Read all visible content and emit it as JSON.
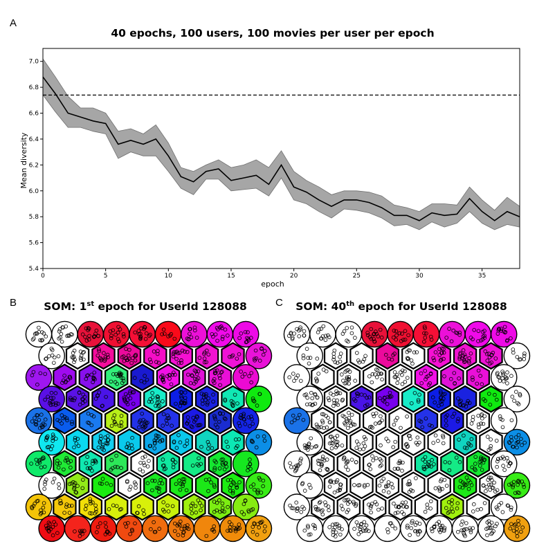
{
  "panels": {
    "a": {
      "letter": "A"
    },
    "b": {
      "letter": "B",
      "title_prefix": "SOM: 1",
      "title_sup": "st",
      "title_suffix": " epoch for UserId 128088"
    },
    "c": {
      "letter": "C",
      "title_prefix": "SOM: 40",
      "title_sup": "th",
      "title_suffix": " epoch for UserId 128088"
    }
  },
  "chart_data": [
    {
      "type": "line",
      "title": "40 epochs, 100 users, 100 movies per user per epoch",
      "xlabel": "epoch",
      "ylabel": "Mean diversity",
      "xlim": [
        0,
        38
      ],
      "ylim": [
        5.4,
        7.1
      ],
      "xticks": [
        0,
        5,
        10,
        15,
        20,
        25,
        30,
        35
      ],
      "yticks": [
        "5.4",
        "5.6",
        "5.8",
        "6.0",
        "6.2",
        "6.4",
        "6.6",
        "6.8",
        "7.0"
      ],
      "reference_line": 6.74,
      "x": [
        0,
        1,
        2,
        3,
        4,
        5,
        6,
        7,
        8,
        9,
        10,
        11,
        12,
        13,
        14,
        15,
        16,
        17,
        18,
        19,
        20,
        21,
        22,
        23,
        24,
        25,
        26,
        27,
        28,
        29,
        30,
        31,
        32,
        33,
        34,
        35,
        36,
        37,
        38
      ],
      "mean": [
        6.88,
        6.75,
        6.6,
        6.57,
        6.54,
        6.52,
        6.36,
        6.39,
        6.36,
        6.4,
        6.27,
        6.11,
        6.07,
        6.15,
        6.17,
        6.08,
        6.1,
        6.12,
        6.05,
        6.2,
        6.03,
        5.99,
        5.93,
        5.88,
        5.93,
        5.93,
        5.91,
        5.87,
        5.81,
        5.81,
        5.77,
        5.83,
        5.81,
        5.82,
        5.94,
        5.84,
        5.77,
        5.84,
        5.8
      ],
      "upper": [
        7.02,
        6.88,
        6.73,
        6.64,
        6.64,
        6.6,
        6.46,
        6.48,
        6.44,
        6.51,
        6.37,
        6.18,
        6.15,
        6.2,
        6.24,
        6.18,
        6.2,
        6.24,
        6.18,
        6.31,
        6.15,
        6.08,
        6.03,
        5.97,
        6.0,
        6.0,
        5.99,
        5.96,
        5.89,
        5.87,
        5.84,
        5.9,
        5.9,
        5.89,
        6.03,
        5.93,
        5.85,
        5.95,
        5.88
      ],
      "lower": [
        6.74,
        6.61,
        6.49,
        6.49,
        6.46,
        6.44,
        6.25,
        6.3,
        6.27,
        6.27,
        6.15,
        6.02,
        5.97,
        6.09,
        6.09,
        6.0,
        6.01,
        6.02,
        5.96,
        6.1,
        5.93,
        5.9,
        5.84,
        5.79,
        5.86,
        5.85,
        5.83,
        5.79,
        5.73,
        5.74,
        5.7,
        5.76,
        5.72,
        5.75,
        5.84,
        5.75,
        5.7,
        5.74,
        5.72
      ]
    },
    {
      "type": "heatmap",
      "name": "SOM epoch 1",
      "rows": 10,
      "cols": 9,
      "colors": [
        [
          "#ffffff",
          "#ffffff",
          "#e8123a",
          "#f01032",
          "#f60f36",
          "#fa0a1a",
          "#ec10d8",
          "#f00aea",
          "#ee0ae6"
        ],
        [
          "#ffffff",
          "#ffffff",
          "#f40c9c",
          "#ec0a9c",
          "#f40ec6",
          "#f510d3",
          "#f014d0",
          "#ef12d6",
          "#e913d8"
        ],
        [
          "#9f17f0",
          "#9f0bef",
          "#8710ec",
          "#32f07a",
          "#1a1ad0",
          "#f210e6",
          "#e112d8",
          "#ea10d8",
          "#ec0ad2"
        ],
        [
          "#5a10e6",
          "#5a12e6",
          "#4a14e8",
          "#7800ee",
          "#18ecc8",
          "#0c1ee6",
          "#1a22e0",
          "#10e8b4",
          "#10ea10"
        ],
        [
          "#1a72e8",
          "#0a5cee",
          "#1a7af0",
          "#b8f018",
          "#2232e8",
          "#2432e8",
          "#1c1ae6",
          "#1a2cd0",
          "#1424e6"
        ],
        [
          "#10e8f0",
          "#0ad8f0",
          "#14d0f0",
          "#0acaec",
          "#0ca8ea",
          "#0ac8ec",
          "#10d4c0",
          "#0ce8b4",
          "#0c8ee6"
        ],
        [
          "#10ea6a",
          "#20ea36",
          "#10e8b0",
          "#2ce858",
          "#ffffff",
          "#10e8a0",
          "#14ea86",
          "#14e830",
          "#16e820"
        ],
        [
          "#ffffff",
          "#92ea18",
          "#1aec10",
          "#ffffff",
          "#18ea20",
          "#1aea18",
          "#1ce818",
          "#1cee12",
          "#38ec16"
        ],
        [
          "#f4c408",
          "#f4c80a",
          "#f2de08",
          "#d8f00c",
          "#d8f00a",
          "#c8f00c",
          "#a0f00e",
          "#7cee12",
          "#86ec12"
        ],
        [
          "#f00c14",
          "#f4241c",
          "#f01c10",
          "#f04a10",
          "#f06c0e",
          "#f0780e",
          "#f0860c",
          "#f08c0a",
          "#f0a010"
        ]
      ]
    },
    {
      "type": "heatmap",
      "name": "SOM epoch 40",
      "rows": 10,
      "cols": 9,
      "colors": [
        [
          "#ffffff",
          "#ffffff",
          "#ffffff",
          "#e8123a",
          "#f01032",
          "#f60f36",
          "#ec10d8",
          "#f00aea",
          "#ee0ae6"
        ],
        [
          "#ffffff",
          "#ffffff",
          "#ffffff",
          "#ec0a9c",
          "#ffffff",
          "#f510d3",
          "#f014d0",
          "#ef12d6",
          "#ffffff"
        ],
        [
          "#ffffff",
          "#ffffff",
          "#ffffff",
          "#ffffff",
          "#ffffff",
          "#f210e6",
          "#e112d8",
          "#ea10d8",
          "#ffffff"
        ],
        [
          "#ffffff",
          "#ffffff",
          "#4a14e8",
          "#7800ee",
          "#18ecc8",
          "#0c1ee6",
          "#1a22e0",
          "#10ea10",
          "#ffffff"
        ],
        [
          "#1a72e8",
          "#ffffff",
          "#ffffff",
          "#ffffff",
          "#ffffff",
          "#2432e8",
          "#1c1ae6",
          "#ffffff",
          "#ffffff"
        ],
        [
          "#ffffff",
          "#ffffff",
          "#ffffff",
          "#ffffff",
          "#ffffff",
          "#ffffff",
          "#10d4c0",
          "#ffffff",
          "#0c8ee6"
        ],
        [
          "#ffffff",
          "#ffffff",
          "#ffffff",
          "#ffffff",
          "#ffffff",
          "#10e8a0",
          "#14ea86",
          "#14e830",
          "#ffffff"
        ],
        [
          "#ffffff",
          "#ffffff",
          "#ffffff",
          "#ffffff",
          "#ffffff",
          "#ffffff",
          "#1ce818",
          "#ffffff",
          "#38ec16"
        ],
        [
          "#ffffff",
          "#ffffff",
          "#ffffff",
          "#ffffff",
          "#ffffff",
          "#ffffff",
          "#a0f00e",
          "#ffffff",
          "#ffffff"
        ],
        [
          "#ffffff",
          "#ffffff",
          "#ffffff",
          "#ffffff",
          "#ffffff",
          "#ffffff",
          "#ffffff",
          "#ffffff",
          "#f0a010"
        ]
      ]
    }
  ]
}
